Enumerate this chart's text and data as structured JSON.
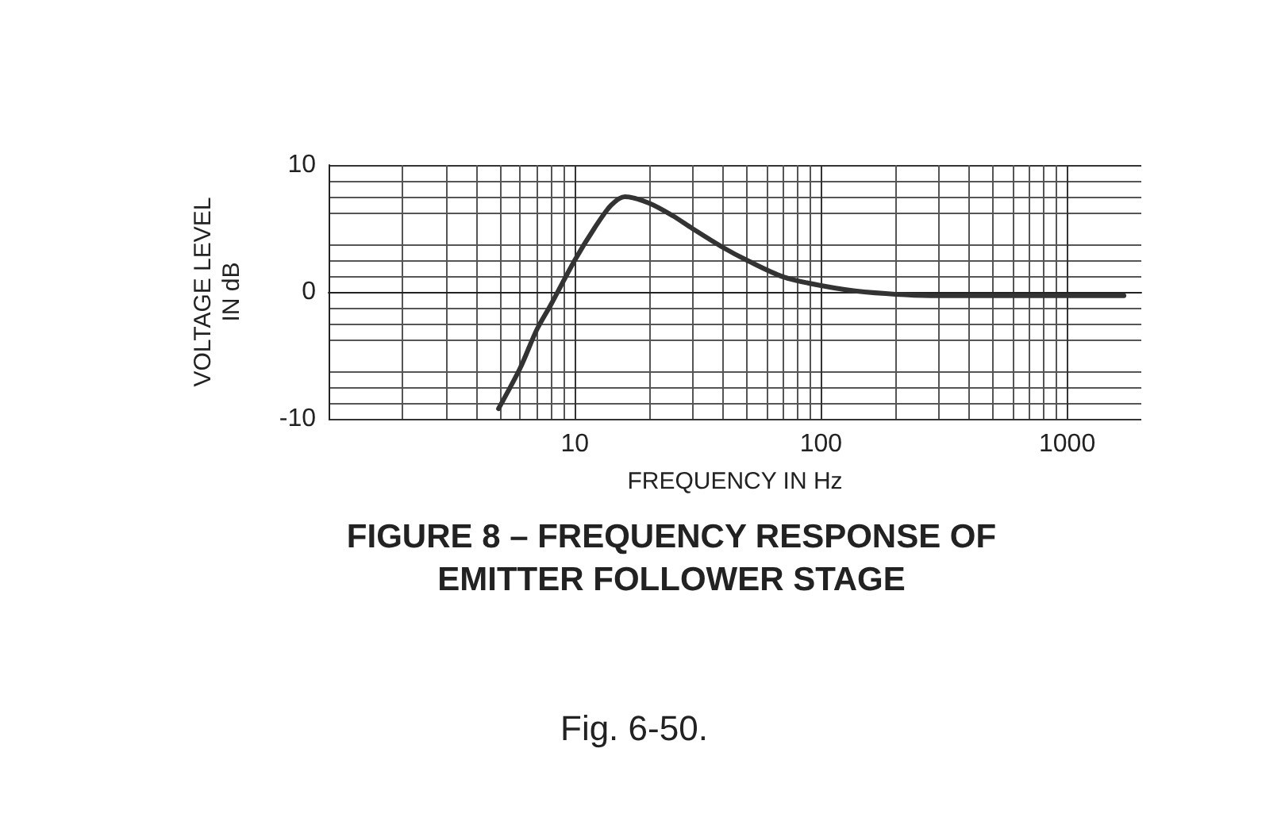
{
  "chart_data": {
    "type": "line",
    "title": "FIGURE 8 – FREQUENCY RESPONSE OF\nEMITTER FOLLOWER STAGE",
    "xlabel": "FREQUENCY IN Hz",
    "ylabel": "VOLTAGE LEVEL\nIN dB",
    "annotations": [
      "Fig. 6-50."
    ],
    "x": [
      4.9,
      6,
      7,
      8,
      10,
      12,
      14,
      16,
      20,
      25,
      30,
      40,
      50,
      70,
      100,
      150,
      300,
      1000,
      1700
    ],
    "series": [
      {
        "color": "#333333",
        "values": [
          -9.2,
          -6,
          -3,
          -1,
          2.5,
          5,
          6.8,
          7.5,
          7,
          6,
          5,
          3.5,
          2.5,
          1.2,
          0.5,
          0,
          -0.3,
          -0.3,
          -0.3
        ]
      }
    ],
    "log": "x",
    "xlim": [
      1,
      2000
    ],
    "xticks": [
      10,
      100,
      1000
    ],
    "ylim": [
      -10,
      10
    ],
    "yticks": [
      -10,
      0,
      10
    ],
    "grid": true,
    "marker": "none",
    "line_style": "solid"
  }
}
